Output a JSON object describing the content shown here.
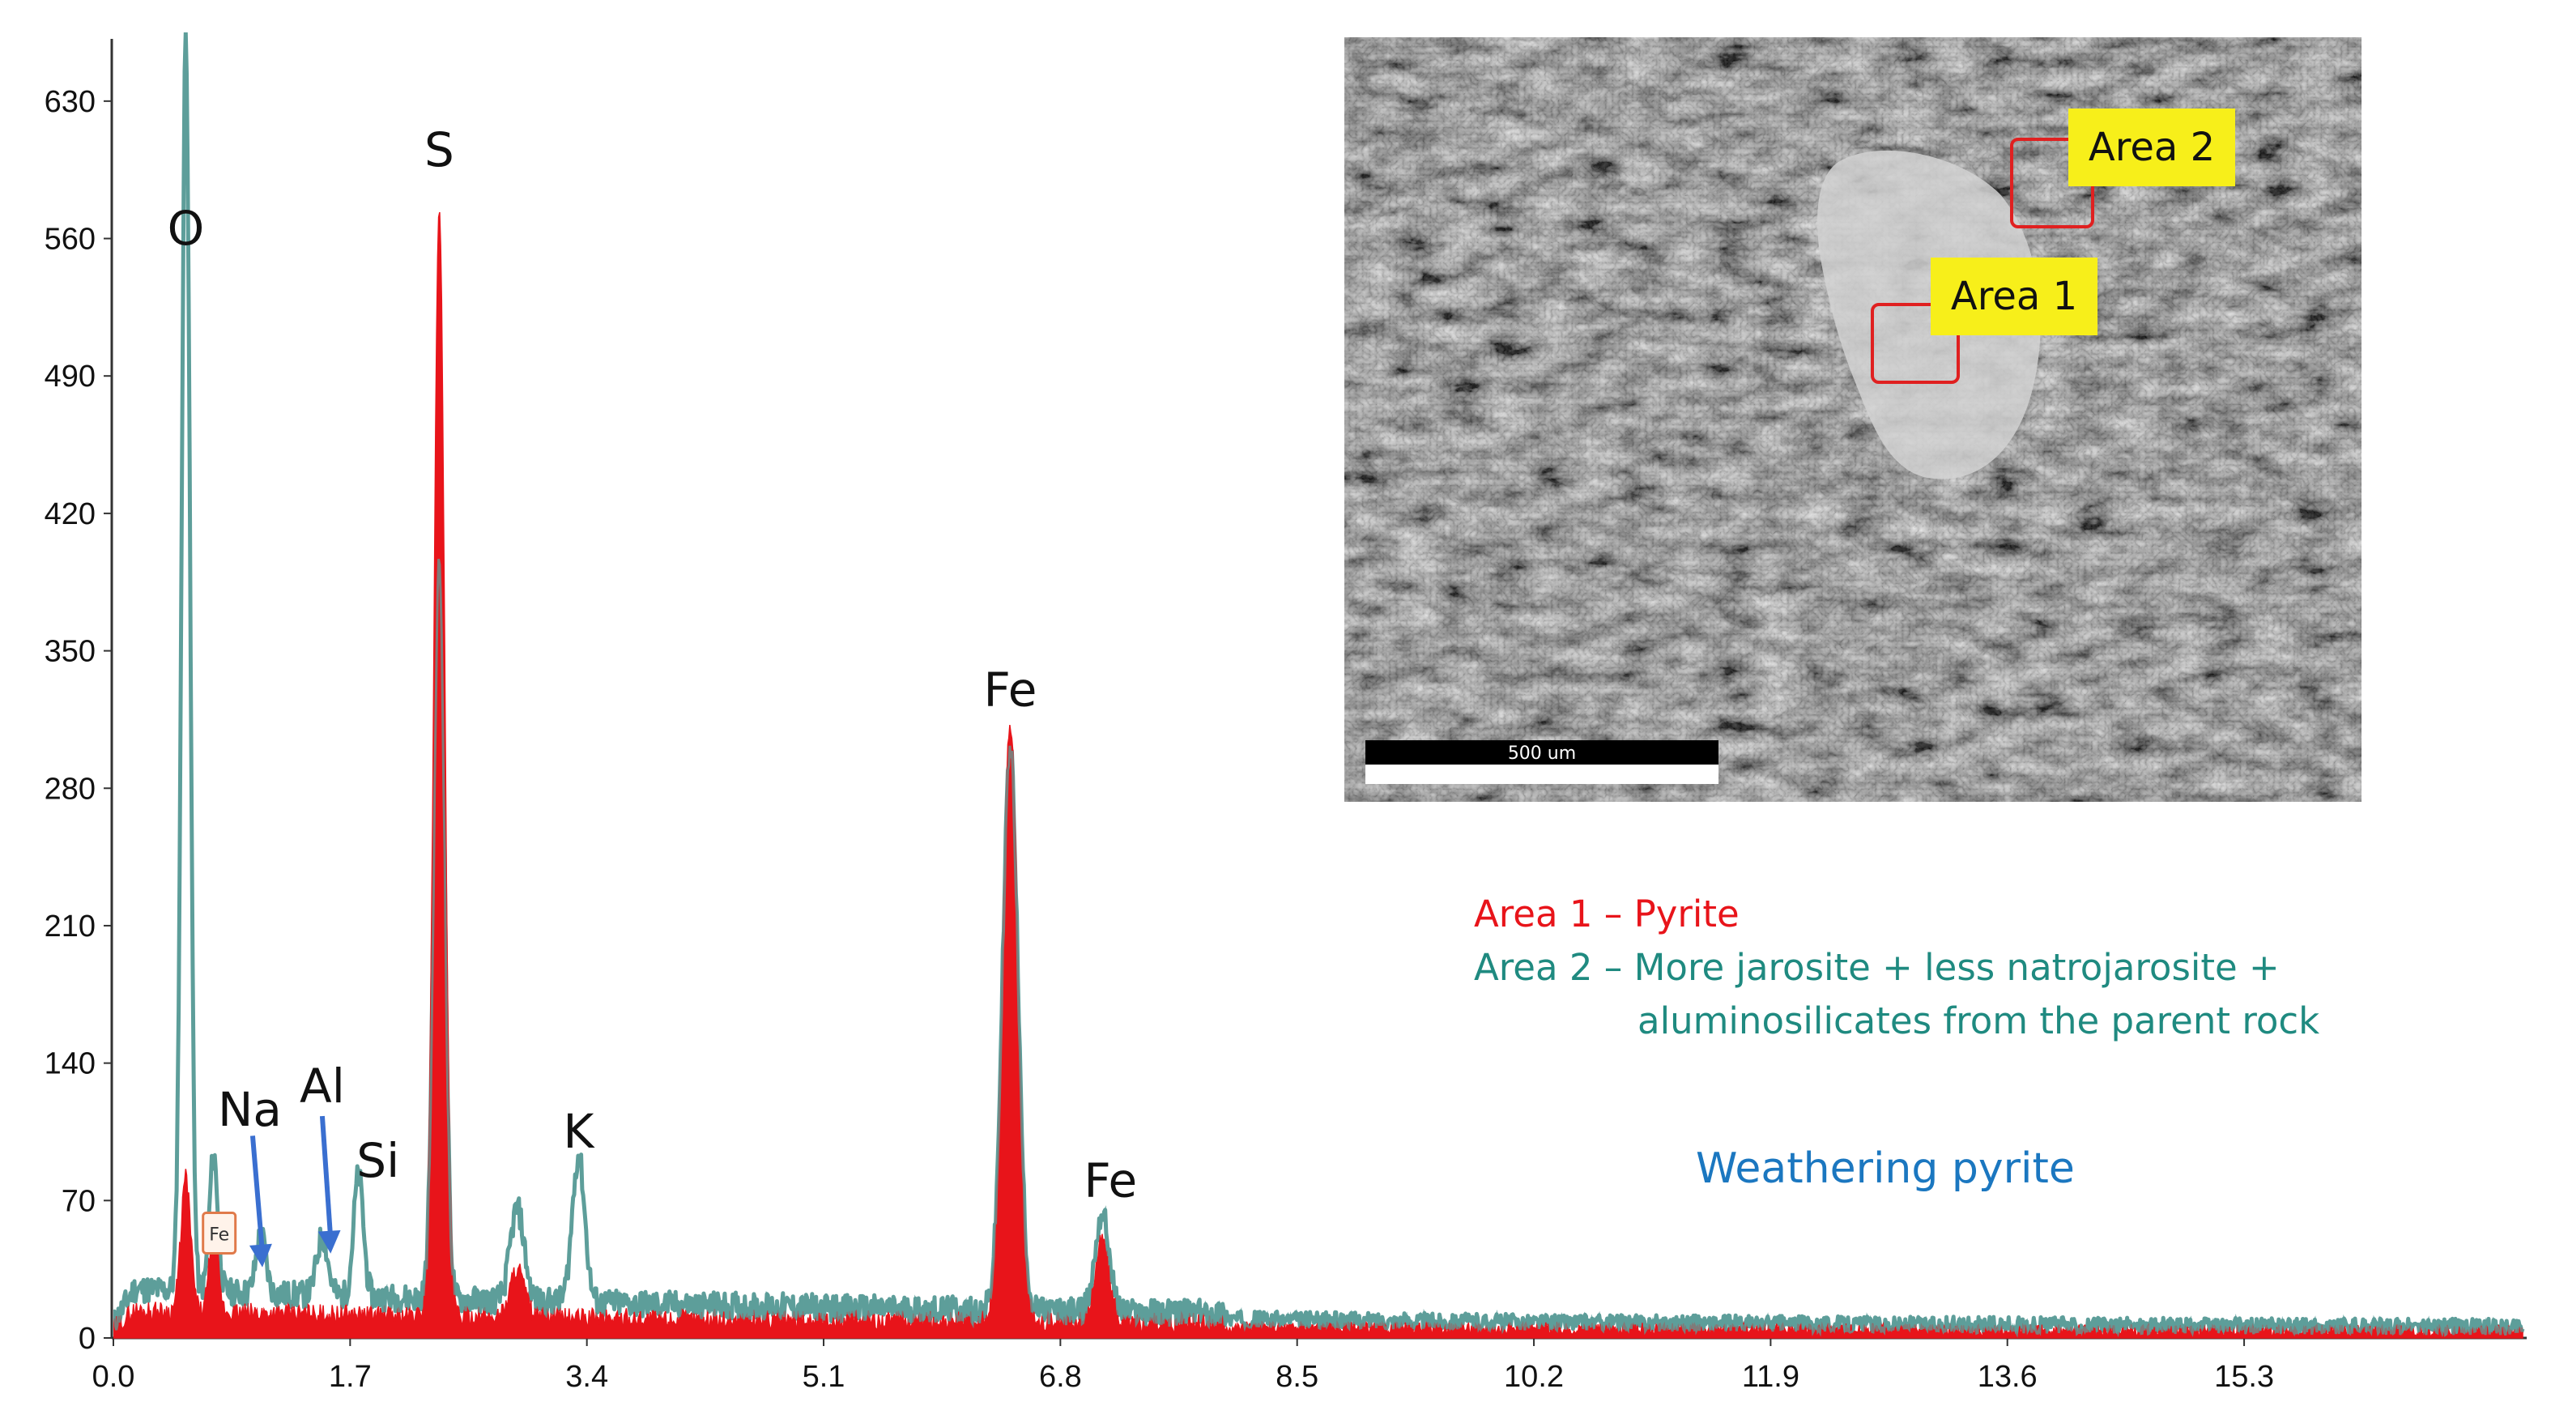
{
  "chart_data": {
    "type": "area",
    "title": "",
    "xlabel": "",
    "ylabel": "",
    "xlim": [
      0,
      17.3
    ],
    "ylim": [
      0,
      665
    ],
    "x_ticks": [
      "0.0",
      "1.7",
      "3.4",
      "5.1",
      "6.8",
      "8.5",
      "10.2",
      "11.9",
      "13.6",
      "15.3"
    ],
    "y_ticks": [
      "0",
      "70",
      "140",
      "210",
      "280",
      "350",
      "420",
      "490",
      "560",
      "630"
    ],
    "grid": false,
    "series": [
      {
        "name": "Area 1 – Pyrite",
        "color": "#e8141a",
        "peaks": [
          {
            "x": 0.52,
            "y": 68,
            "w": 0.035
          },
          {
            "x": 0.72,
            "y": 45,
            "w": 0.03
          },
          {
            "x": 2.34,
            "y": 568,
            "w": 0.038
          },
          {
            "x": 2.9,
            "y": 25,
            "w": 0.05
          },
          {
            "x": 6.44,
            "y": 305,
            "w": 0.055
          },
          {
            "x": 7.1,
            "y": 42,
            "w": 0.05
          }
        ]
      },
      {
        "name": "Area 2 – More jarosite + less natrojarosite + aluminosilicates from the parent rock",
        "color": "#5e9e9a",
        "peaks": [
          {
            "x": 0.52,
            "y": 640,
            "w": 0.03
          },
          {
            "x": 0.72,
            "y": 70,
            "w": 0.03
          },
          {
            "x": 1.06,
            "y": 30,
            "w": 0.035
          },
          {
            "x": 1.5,
            "y": 30,
            "w": 0.04
          },
          {
            "x": 1.76,
            "y": 62,
            "w": 0.035
          },
          {
            "x": 2.34,
            "y": 375,
            "w": 0.038
          },
          {
            "x": 2.9,
            "y": 47,
            "w": 0.05
          },
          {
            "x": 3.34,
            "y": 75,
            "w": 0.045
          },
          {
            "x": 6.44,
            "y": 285,
            "w": 0.055
          },
          {
            "x": 7.1,
            "y": 50,
            "w": 0.05
          }
        ]
      }
    ],
    "peak_labels": [
      {
        "text": "O",
        "x": 0.52,
        "y": 557
      },
      {
        "text": "S",
        "x": 2.34,
        "y": 597
      },
      {
        "text": "Fe",
        "x": 6.44,
        "y": 322
      },
      {
        "text": "Fe",
        "x": 7.16,
        "y": 72
      },
      {
        "text": "K",
        "x": 3.34,
        "y": 97
      },
      {
        "text": "Si",
        "x": 1.9,
        "y": 82
      },
      {
        "text": "Na",
        "x": 0.98,
        "y": 108
      },
      {
        "text": "Al",
        "x": 1.5,
        "y": 120
      }
    ],
    "small_tag": {
      "text": "Fe",
      "x": 0.76,
      "y": 53
    },
    "arrows": [
      {
        "from": [
          1.0,
          103
        ],
        "to": [
          1.07,
          36
        ]
      },
      {
        "from": [
          1.5,
          113
        ],
        "to": [
          1.56,
          43
        ]
      }
    ],
    "annotations": {
      "legend_area1": "Area 1 – Pyrite",
      "legend_area2_line1": "Area 2 – More jarosite + less natrojarosite +",
      "legend_area2_line2": "aluminosilicates from the parent rock",
      "caption": "Weathering pyrite",
      "area1_color": "#e8141a",
      "area2_color": "#1f8a80",
      "caption_color": "#1b77c0"
    },
    "inset": {
      "area1_label": "Area 1",
      "area2_label": "Area 2",
      "scale_bar_label": "500 um"
    }
  }
}
